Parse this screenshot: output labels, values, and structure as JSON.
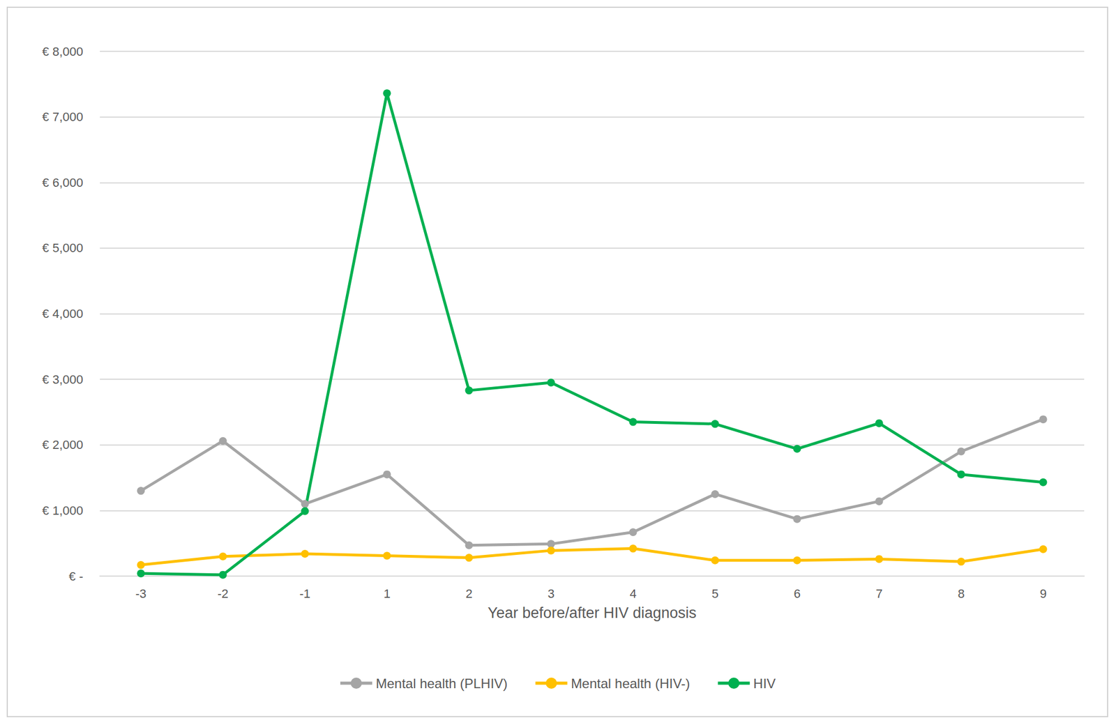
{
  "chart_data": {
    "type": "line",
    "x_label": "Year before/after HIV diagnosis",
    "categories": [
      "-3",
      "-2",
      "-1",
      "1",
      "2",
      "3",
      "4",
      "5",
      "6",
      "7",
      "8",
      "9"
    ],
    "series": [
      {
        "name": "Mental health (PLHIV)",
        "color": "#a5a5a5",
        "marker": "circle",
        "line_style": "solid",
        "values": [
          1300,
          2060,
          1100,
          1550,
          470,
          490,
          670,
          1250,
          870,
          1140,
          1900,
          2390
        ]
      },
      {
        "name": "Mental health (HIV-)",
        "color": "#ffc000",
        "marker": "circle",
        "line_style": "solid",
        "values": [
          170,
          300,
          340,
          310,
          280,
          390,
          420,
          240,
          240,
          260,
          220,
          410
        ]
      },
      {
        "name": "HIV",
        "color": "#00b050",
        "marker": "circle",
        "line_style": "solid",
        "values": [
          40,
          20,
          990,
          7360,
          2830,
          2950,
          2350,
          2320,
          1940,
          2330,
          1550,
          1430
        ]
      }
    ],
    "ylim": [
      0,
      8000
    ],
    "yticks": [
      {
        "value": 0,
        "label": "€ -"
      },
      {
        "value": 1000,
        "label": "€ 1,000"
      },
      {
        "value": 2000,
        "label": "€ 2,000"
      },
      {
        "value": 3000,
        "label": "€ 3,000"
      },
      {
        "value": 4000,
        "label": "€ 4,000"
      },
      {
        "value": 5000,
        "label": "€ 5,000"
      },
      {
        "value": 6000,
        "label": "€ 6,000"
      },
      {
        "value": 7000,
        "label": "€ 7,000"
      },
      {
        "value": 8000,
        "label": "€ 8,000"
      }
    ],
    "grid": true,
    "legend": "bottom"
  }
}
